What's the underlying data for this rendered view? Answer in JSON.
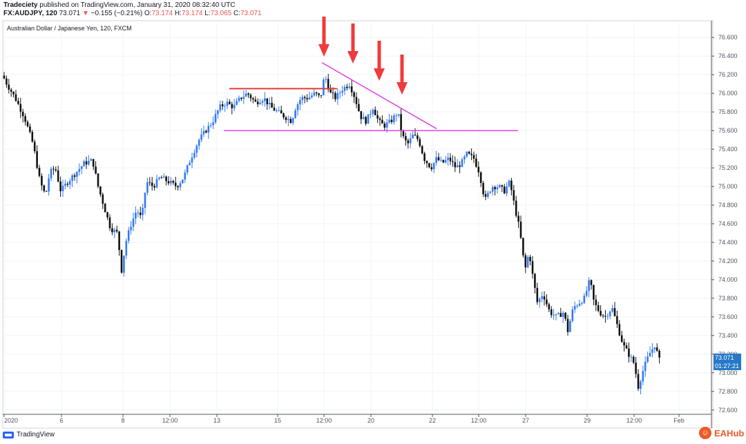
{
  "header": {
    "publisher": "Tradeciety",
    "published_text": "published on TradingView.com, January 31, 2020 08:32:40 UTC",
    "symbol": "FX:AUDJPY, 120",
    "last": "73.071",
    "change_arrow": "▼",
    "change": "−0.155 (−0.21%)",
    "o_label": "O:",
    "o_val": "73.174",
    "h_label": "H:",
    "h_val": "73.174",
    "l_label": "L:",
    "l_val": "73.065",
    "c_label": "C:",
    "c_val": "73.071"
  },
  "chart_data": {
    "type": "candlestick",
    "title": "Australian Dollar / Japanese Yen, 120, FXCM",
    "ylim": [
      72.45,
      76.75
    ],
    "y_ticks": [
      "76.600",
      "76.400",
      "76.200",
      "76.000",
      "75.800",
      "75.600",
      "75.400",
      "75.200",
      "75.000",
      "74.800",
      "74.600",
      "74.400",
      "74.200",
      "74.000",
      "73.800",
      "73.600",
      "73.400",
      "73.200",
      "73.000",
      "72.800",
      "72.600"
    ],
    "x_ticks": [
      "2020",
      "6",
      "8",
      "12:00",
      "13",
      "15",
      "12:00",
      "20",
      "22",
      "12:00",
      "27",
      "29",
      "12:00",
      "Feb"
    ],
    "last_price": "73.071",
    "countdown": "01:27:21",
    "colors": {
      "up": "#3179f5",
      "down": "#111111",
      "arrow": "#ef3b3b",
      "trendline": "#e040e6",
      "resistance": "#e53935"
    },
    "support_level": 75.6,
    "resistance_level": 76.05,
    "arrows_count": 4
  },
  "footer": {
    "tv_label": "TradingView",
    "brand": "EAHub"
  }
}
